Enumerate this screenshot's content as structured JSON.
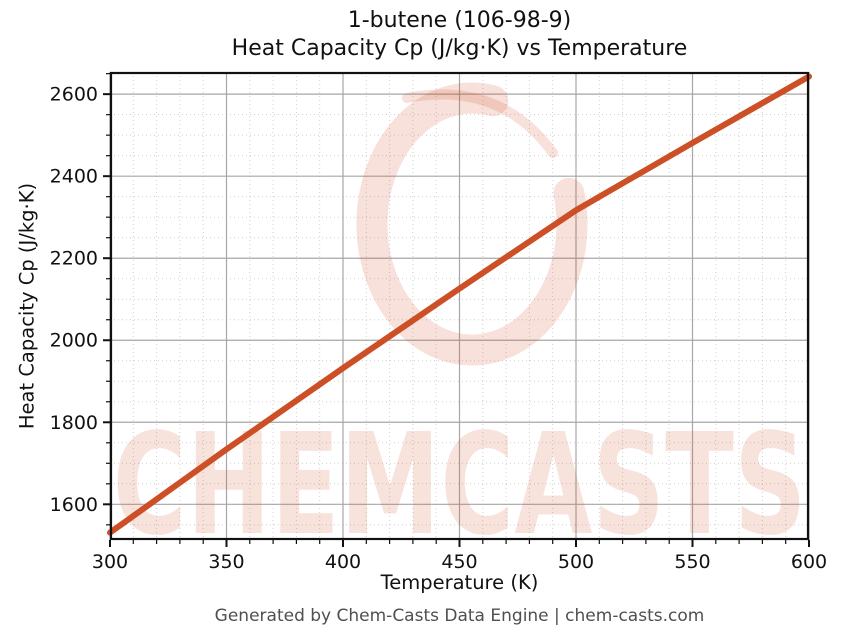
{
  "header": {
    "title_line1": "1-butene (106-98-9)",
    "title_line2": "Heat Capacity Cp (J/kg·K) vs Temperature"
  },
  "footer": {
    "text": "Generated by Chem-Casts Data Engine | chem-casts.com"
  },
  "watermark": {
    "text": "CHEMCASTS",
    "logo": "brush-ring-c",
    "color_rgb": "205,79,38",
    "text_opacity": 0.16,
    "logo_opacity": 0.17
  },
  "colors": {
    "line": "#cd4f26",
    "grid_major": "#a6a6a6",
    "grid_minor": "#cfcfcf",
    "axis": "#111111",
    "footer_text": "#4f4f4f"
  },
  "chart_data": {
    "type": "line",
    "title": "1-butene (106-98-9) — Heat Capacity Cp (J/kg·K) vs Temperature",
    "xlabel": "Temperature (K)",
    "ylabel": "Heat Capacity Cp (J/kg·K)",
    "series": [
      {
        "name": "Cp (J/kg·K)",
        "x": [
          300,
          350,
          400,
          450,
          500,
          550,
          600
        ],
        "y": [
          1531,
          1734,
          1932,
          2126,
          2317,
          2481,
          2643
        ]
      }
    ],
    "xlim": [
      300,
      600
    ],
    "ylim": [
      1513,
      2654
    ],
    "x_major_ticks": [
      300,
      350,
      400,
      450,
      500,
      550,
      600
    ],
    "y_major_ticks": [
      1600,
      1800,
      2000,
      2200,
      2400,
      2600
    ],
    "x_minor_step": 10,
    "y_minor_step": 50,
    "grid": true,
    "legend": "none"
  }
}
